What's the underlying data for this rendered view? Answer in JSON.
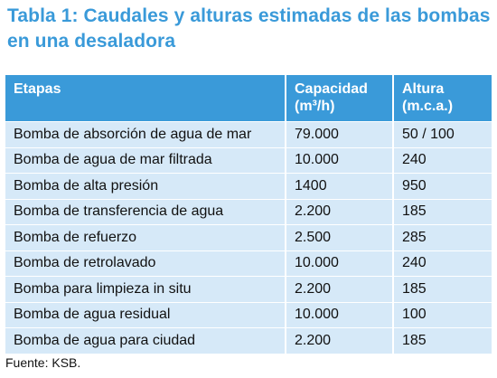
{
  "title": "Tabla 1: Caudales y alturas estimadas de las bombas en una desaladora",
  "columns": {
    "etapas": "Etapas",
    "capacidad_line1": "Capacidad",
    "capacidad_line2": "(m³/h)",
    "altura_line1": "Altura",
    "altura_line2": "(m.c.a.)"
  },
  "rows": [
    {
      "etapa": "Bomba de absorción de agua de mar",
      "capacidad": "79.000",
      "altura": "50 / 100"
    },
    {
      "etapa": "Bomba de agua de mar filtrada",
      "capacidad": "10.000",
      "altura": "240"
    },
    {
      "etapa": "Bomba de alta presión",
      "capacidad": "1400",
      "altura": "950"
    },
    {
      "etapa": "Bomba de transferencia de agua",
      "capacidad": "2.200",
      "altura": "185"
    },
    {
      "etapa": "Bomba de refuerzo",
      "capacidad": "2.500",
      "altura": "285"
    },
    {
      "etapa": "Bomba de retrolavado",
      "capacidad": "10.000",
      "altura": "240"
    },
    {
      "etapa": "Bomba para limpieza in situ",
      "capacidad": "2.200",
      "altura": "185"
    },
    {
      "etapa": "Bomba de agua residual",
      "capacidad": "10.000",
      "altura": "100"
    },
    {
      "etapa": "Bomba de agua para ciudad",
      "capacidad": "2.200",
      "altura": "185"
    }
  ],
  "source": "Fuente: KSB.",
  "colors": {
    "accent": "#3a9ad9",
    "row_bg": "#d6e9f8"
  }
}
